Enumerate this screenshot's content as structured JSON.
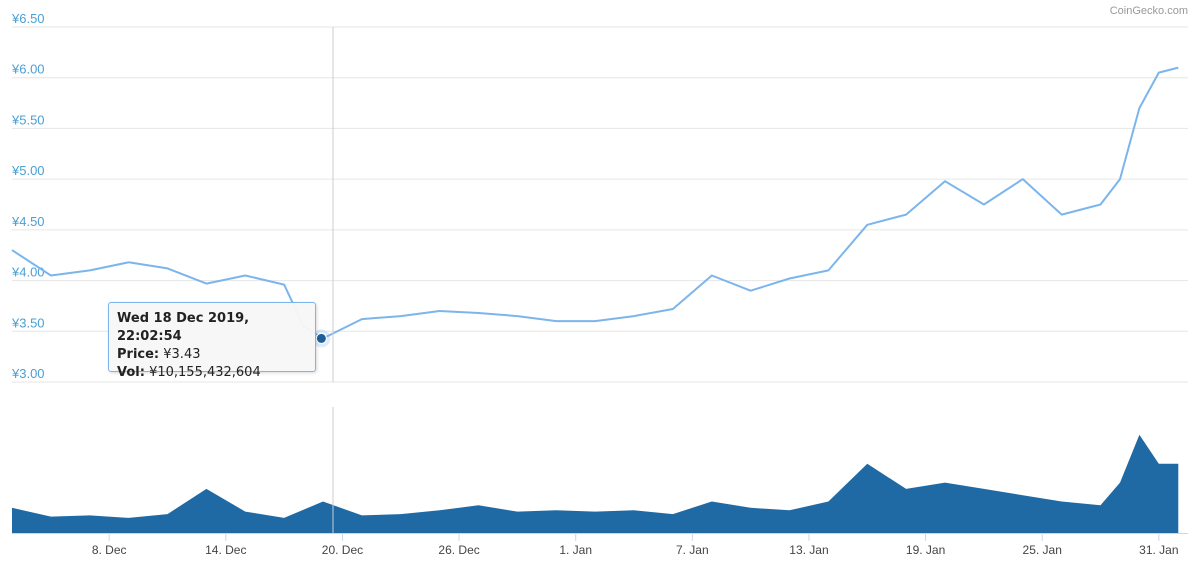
{
  "credit": "CoinGecko.com",
  "tooltip": {
    "date": "Wed 18 Dec 2019, 22:02:54",
    "price_label": "Price:",
    "price_value": "¥3.43",
    "vol_label": "Vol:",
    "vol_value": "¥10,155,432,604"
  },
  "colors": {
    "price_line": "#7cb5ec",
    "volume_fill": "#1f6aa5",
    "marker": "#1f5f99",
    "grid": "#e6e6e6",
    "y_label": "#4a9fd5"
  },
  "chart_data": [
    {
      "type": "line",
      "series": [
        {
          "values_desc": "price"
        }
      ],
      "ylim": [
        3.0,
        6.5
      ],
      "y_ticks": [
        "¥3.00",
        "¥3.50",
        "¥4.00",
        "¥4.50",
        "¥5.00",
        "¥5.50",
        "¥6.00",
        "¥6.50"
      ],
      "x_ticks": [
        "8. Dec",
        "14. Dec",
        "20. Dec",
        "26. Dec",
        "1. Jan",
        "7. Jan",
        "13. Jan",
        "19. Jan",
        "25. Jan",
        "31. Jan"
      ],
      "x": [
        "2019-12-03",
        "2019-12-05",
        "2019-12-07",
        "2019-12-09",
        "2019-12-11",
        "2019-12-13",
        "2019-12-15",
        "2019-12-17",
        "2019-12-18",
        "2019-12-19",
        "2019-12-21",
        "2019-12-23",
        "2019-12-25",
        "2019-12-27",
        "2019-12-29",
        "2019-12-31",
        "2020-01-02",
        "2020-01-04",
        "2020-01-06",
        "2020-01-08",
        "2020-01-10",
        "2020-01-12",
        "2020-01-14",
        "2020-01-16",
        "2020-01-18",
        "2020-01-20",
        "2020-01-22",
        "2020-01-24",
        "2020-01-26",
        "2020-01-28",
        "2020-01-29",
        "2020-01-30",
        "2020-01-31",
        "2020-02-01"
      ],
      "values": [
        4.3,
        4.05,
        4.1,
        4.18,
        4.12,
        3.97,
        4.05,
        3.96,
        3.55,
        3.43,
        3.62,
        3.65,
        3.7,
        3.68,
        3.65,
        3.6,
        3.6,
        3.65,
        3.72,
        4.05,
        3.9,
        4.02,
        4.1,
        4.55,
        4.65,
        4.98,
        4.75,
        5.0,
        4.65,
        4.75,
        5.0,
        5.7,
        6.05,
        6.1
      ],
      "tooltip_point": {
        "x": "2019-12-18 22:02:54",
        "y": 3.43
      }
    },
    {
      "type": "area",
      "name": "volume",
      "x": [
        "2019-12-03",
        "2019-12-05",
        "2019-12-07",
        "2019-12-09",
        "2019-12-11",
        "2019-12-13",
        "2019-12-15",
        "2019-12-17",
        "2019-12-19",
        "2019-12-21",
        "2019-12-23",
        "2019-12-25",
        "2019-12-27",
        "2019-12-29",
        "2019-12-31",
        "2020-01-02",
        "2020-01-04",
        "2020-01-06",
        "2020-01-08",
        "2020-01-10",
        "2020-01-12",
        "2020-01-14",
        "2020-01-16",
        "2020-01-18",
        "2020-01-20",
        "2020-01-22",
        "2020-01-24",
        "2020-01-26",
        "2020-01-28",
        "2020-01-29",
        "2020-01-30",
        "2020-01-31",
        "2020-02-01"
      ],
      "values": [
        0.2,
        0.13,
        0.14,
        0.12,
        0.15,
        0.35,
        0.17,
        0.12,
        0.25,
        0.14,
        0.15,
        0.18,
        0.22,
        0.17,
        0.18,
        0.17,
        0.18,
        0.15,
        0.25,
        0.2,
        0.18,
        0.25,
        0.55,
        0.35,
        0.4,
        0.35,
        0.3,
        0.25,
        0.22,
        0.4,
        0.78,
        0.55,
        0.55
      ]
    }
  ]
}
